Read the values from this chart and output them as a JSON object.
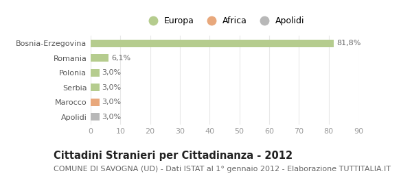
{
  "categories": [
    "Bosnia-Erzegovina",
    "Romania",
    "Polonia",
    "Serbia",
    "Marocco",
    "Apolidi"
  ],
  "values": [
    81.8,
    6.1,
    3.0,
    3.0,
    3.0,
    3.0
  ],
  "labels": [
    "81,8%",
    "6,1%",
    "3,0%",
    "3,0%",
    "3,0%",
    "3,0%"
  ],
  "bar_colors": [
    "#b5cc8e",
    "#b5cc8e",
    "#b5cc8e",
    "#b5cc8e",
    "#e8a87c",
    "#b8b8b8"
  ],
  "legend_items": [
    {
      "label": "Europa",
      "color": "#b5cc8e"
    },
    {
      "label": "Africa",
      "color": "#e8a87c"
    },
    {
      "label": "Apolidi",
      "color": "#b8b8b8"
    }
  ],
  "xlim": [
    0,
    90
  ],
  "xticks": [
    0,
    10,
    20,
    30,
    40,
    50,
    60,
    70,
    80,
    90
  ],
  "title": "Cittadini Stranieri per Cittadinanza - 2012",
  "subtitle": "COMUNE DI SAVOGNA (UD) - Dati ISTAT al 1° gennaio 2012 - Elaborazione TUTTITALIA.IT",
  "background_color": "#ffffff",
  "plot_bg_color": "#ffffff",
  "grid_color": "#e8e8e8",
  "bar_height": 0.5,
  "title_fontsize": 10.5,
  "subtitle_fontsize": 8,
  "tick_fontsize": 8,
  "label_fontsize": 8,
  "legend_fontsize": 9
}
